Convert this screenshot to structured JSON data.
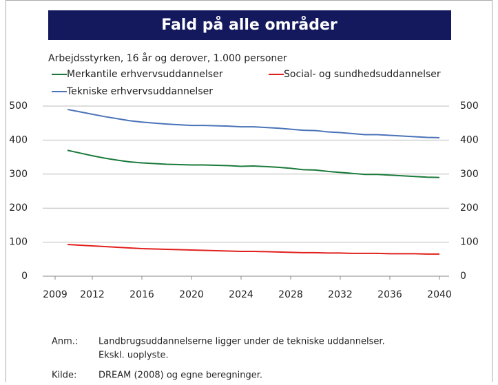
{
  "chart_data": {
    "type": "line",
    "title": "Fald på alle områder",
    "subtitle": "Arbejdsstyrken, 16 år og derover, 1.000 personer",
    "x": [
      2010,
      2011,
      2012,
      2013,
      2014,
      2015,
      2016,
      2017,
      2018,
      2019,
      2020,
      2021,
      2022,
      2023,
      2024,
      2025,
      2026,
      2027,
      2028,
      2029,
      2030,
      2031,
      2032,
      2033,
      2034,
      2035,
      2036,
      2037,
      2038,
      2039,
      2040
    ],
    "series": [
      {
        "name": "Merkantile erhvervsuddannelser",
        "color": "#1a7a3a",
        "values": [
          370,
          362,
          354,
          347,
          341,
          336,
          333,
          331,
          329,
          328,
          327,
          327,
          326,
          325,
          323,
          324,
          322,
          320,
          317,
          313,
          312,
          308,
          305,
          302,
          299,
          299,
          297,
          295,
          293,
          291,
          290
        ]
      },
      {
        "name": "Social- og sundhedsuddannelser",
        "color": "#e0201c",
        "values": [
          93,
          91,
          89,
          87,
          85,
          83,
          81,
          80,
          79,
          78,
          77,
          76,
          75,
          74,
          73,
          73,
          72,
          71,
          70,
          69,
          69,
          68,
          68,
          67,
          67,
          67,
          66,
          66,
          66,
          65,
          65
        ]
      },
      {
        "name": "Tekniske erhvervsuddannelser",
        "color": "#4a72b8",
        "values": [
          490,
          483,
          476,
          469,
          463,
          457,
          453,
          450,
          447,
          445,
          443,
          443,
          442,
          441,
          439,
          439,
          437,
          435,
          432,
          429,
          428,
          424,
          422,
          419,
          416,
          416,
          414,
          412,
          410,
          408,
          407
        ]
      }
    ],
    "xlim": [
      2008,
      2041
    ],
    "xticks": [
      2009,
      2012,
      2016,
      2020,
      2024,
      2028,
      2032,
      2036,
      2040
    ],
    "ylim": [
      0,
      500
    ],
    "yticks": [
      0,
      100,
      200,
      300,
      400,
      500
    ],
    "y2lim": [
      0,
      500
    ],
    "y2ticks": [
      0,
      100,
      200,
      300,
      400,
      500
    ],
    "grid": true,
    "notes": {
      "label": "Anm.:",
      "lines": [
        "Landbrugsuddannelserne ligger under de tekniske uddannelser.",
        "Ekskl. uoplyste."
      ]
    },
    "source": {
      "label": "Kilde:",
      "text": "DREAM (2008) og egne beregninger."
    }
  }
}
